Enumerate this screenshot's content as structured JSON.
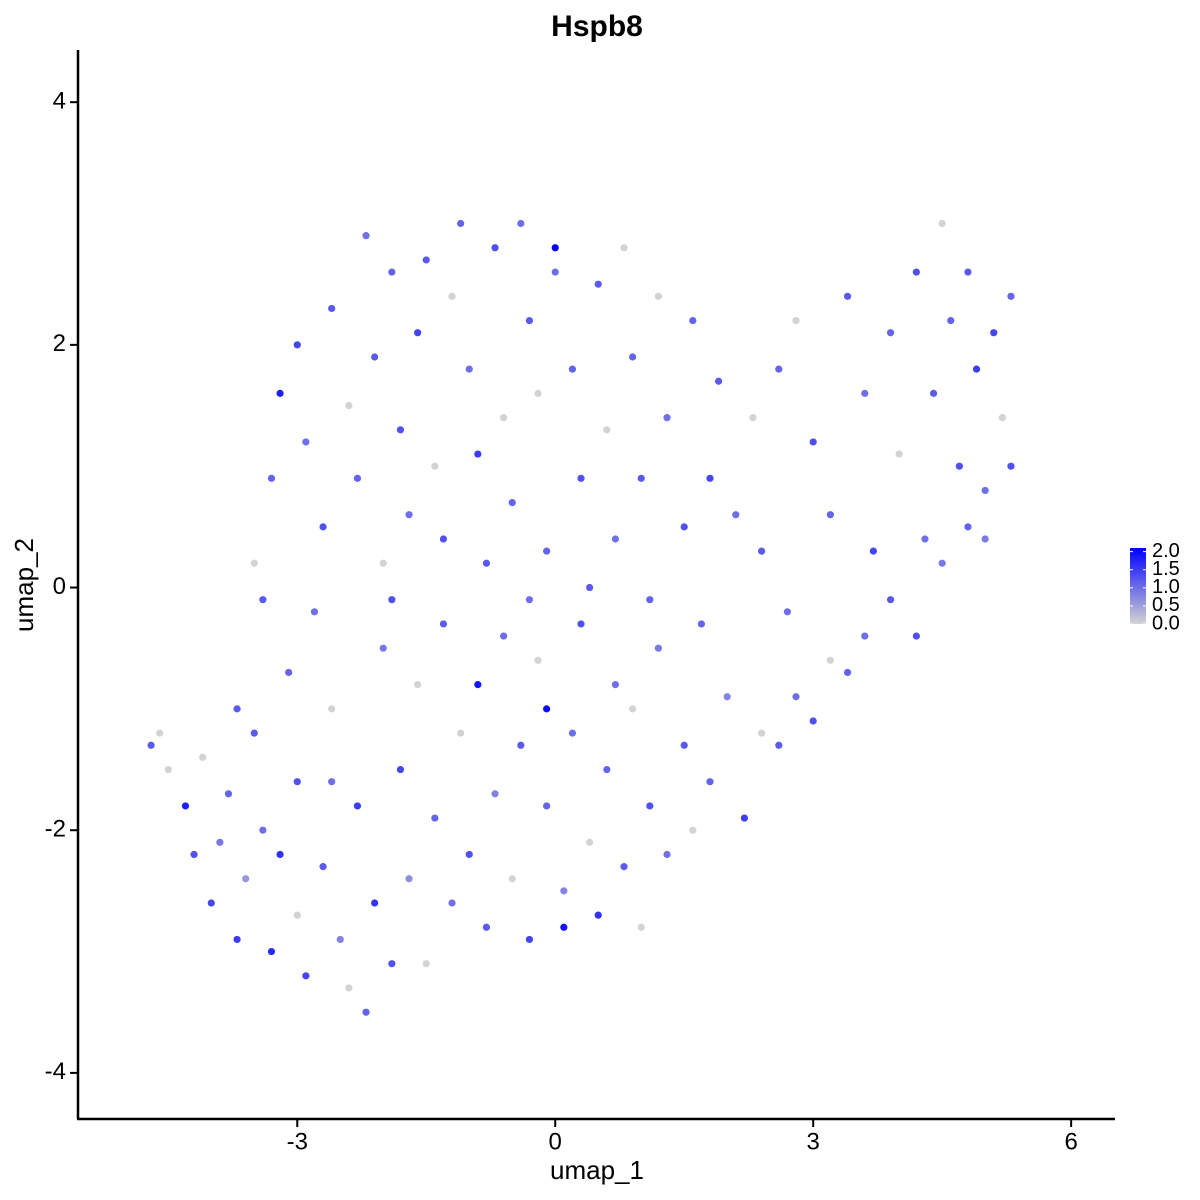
{
  "chart_data": {
    "type": "scatter",
    "title": "Hspb8",
    "x_label": "umap_1",
    "y_label": "umap_2",
    "xlim": [
      -5.55,
      6.51
    ],
    "ylim": [
      -4.38,
      4.43
    ],
    "xticks": [
      -3,
      0,
      3,
      6
    ],
    "yticks": [
      -4,
      -2,
      0,
      2,
      4
    ],
    "color_low": "#d3d3d3",
    "color_high": "#0000ff",
    "clim": [
      0,
      2.1
    ],
    "cticks": [
      {
        "value": 0,
        "label": "0.0"
      },
      0.5,
      {
        "value": 1,
        "label": "1.0"
      },
      1.5,
      {
        "value": 2,
        "label": "2.0"
      }
    ],
    "series": [
      {
        "x": [
          -4.7,
          -4.6,
          -4.5,
          -4.3,
          -4.2,
          -4.0,
          -4.1,
          -3.9,
          -3.8,
          -3.7,
          -3.6,
          -3.5,
          -3.4,
          -3.3,
          -3.2,
          -3.1,
          -3.0,
          -3.0,
          -2.9,
          -2.8,
          -2.7,
          -2.6,
          -2.5,
          -2.4,
          -2.3,
          -2.2,
          -2.1,
          -2.0,
          -1.9,
          -1.8,
          -1.7,
          -1.6,
          -1.5,
          -1.4,
          -1.3,
          -1.2,
          -1.1,
          -1.0,
          -0.9,
          -0.8,
          -0.7,
          -0.6,
          -0.5,
          -0.4,
          -0.3,
          -0.2,
          -0.1,
          -0.1,
          0.1,
          0.1,
          0.2,
          0.3,
          0.4,
          0.5,
          0.6,
          0.7,
          0.8,
          0.9,
          1.0,
          1.1,
          1.2,
          1.3,
          1.5,
          1.6,
          1.8,
          2.0,
          2.2,
          2.4,
          2.6,
          2.8,
          3.0,
          3.2,
          3.4,
          3.6,
          3.9,
          4.2,
          4.5,
          4.8,
          5.0,
          5.3,
          -3.4,
          -3.5,
          -3.3,
          -3.2,
          -3.0,
          -2.9,
          -2.7,
          -2.6,
          -2.4,
          -2.3,
          -2.2,
          -2.1,
          -2.0,
          -1.9,
          -1.8,
          -1.7,
          -1.6,
          -1.5,
          -1.4,
          -1.3,
          -1.2,
          -1.1,
          -1.0,
          -0.9,
          -0.8,
          -0.7,
          -0.6,
          -0.5,
          -0.4,
          -0.3,
          -0.2,
          -0.1,
          0,
          0,
          0.2,
          0.3,
          0.5,
          0.6,
          0.7,
          0.8,
          0.9,
          1.0,
          1.2,
          1.3,
          1.5,
          1.6,
          1.8,
          1.9,
          2.1,
          2.3,
          2.4,
          2.6,
          2.8,
          3.0,
          3.2,
          3.4,
          3.6,
          3.7,
          3.9,
          4.0,
          4.2,
          4.3,
          4.4,
          4.5,
          4.6,
          4.7,
          4.8,
          4.9,
          5.0,
          5.1,
          5.2,
          5.3,
          -0.3,
          0.4,
          1.1,
          -1.9,
          -2.6,
          -3.7,
          1.7,
          2.7
        ],
        "y": [
          -1.3,
          -1.2,
          -1.5,
          -1.8,
          -2.2,
          -2.6,
          -1.4,
          -2.1,
          -1.7,
          -2.9,
          -2.4,
          -1.2,
          -2.0,
          -3.0,
          -2.2,
          -0.7,
          -2.7,
          -1.6,
          -3.2,
          -0.2,
          -2.3,
          -1.0,
          -2.9,
          -3.3,
          -1.8,
          -3.5,
          -2.6,
          -0.5,
          -3.1,
          -1.5,
          -2.4,
          -0.8,
          -3.1,
          -1.9,
          -0.3,
          -2.6,
          -1.2,
          -2.2,
          -0.8,
          -2.8,
          -1.7,
          -0.4,
          -2.4,
          -1.3,
          -2.9,
          -0.6,
          -1.8,
          -1.0,
          -2.5,
          -2.8,
          -1.2,
          -0.3,
          -2.1,
          -2.7,
          -1.5,
          -0.8,
          -2.3,
          -1.0,
          -2.8,
          -1.8,
          -0.5,
          -2.2,
          -1.3,
          -2.0,
          -1.6,
          -0.9,
          -1.9,
          -1.2,
          -1.3,
          -0.9,
          -1.1,
          -0.6,
          -0.7,
          -0.4,
          -0.1,
          -0.4,
          0.2,
          0.5,
          0.8,
          1.0,
          -0.1,
          0.2,
          0.9,
          1.6,
          2.0,
          1.2,
          0.5,
          2.3,
          1.5,
          0.9,
          2.9,
          1.9,
          0.2,
          2.6,
          1.3,
          0.6,
          2.1,
          2.7,
          1.0,
          0.4,
          2.4,
          3.0,
          1.8,
          1.1,
          0.2,
          2.8,
          1.4,
          0.7,
          3.0,
          2.2,
          1.6,
          0.3,
          2.6,
          2.8,
          1.8,
          0.9,
          2.5,
          1.3,
          0.4,
          2.8,
          1.9,
          0.9,
          2.4,
          1.4,
          0.5,
          2.2,
          0.9,
          1.7,
          0.6,
          1.4,
          0.3,
          1.8,
          2.2,
          1.2,
          0.6,
          2.4,
          1.6,
          0.3,
          2.1,
          1.1,
          2.6,
          0.4,
          1.6,
          3.0,
          2.2,
          1.0,
          2.6,
          1.8,
          0.4,
          2.1,
          1.4,
          2.4,
          -0.1,
          0,
          -0.1,
          -0.1,
          -1.6,
          -1.0,
          -0.3,
          -0.2
        ],
        "values": [
          1.2,
          0,
          0,
          1.8,
          1.3,
          1.4,
          0,
          0.9,
          1.1,
          1.5,
          0.6,
          1.2,
          1.0,
          1.7,
          1.6,
          1.1,
          0,
          1.3,
          1.4,
          1.0,
          1.2,
          0,
          0.8,
          0,
          1.5,
          1.1,
          1.6,
          0.9,
          1.3,
          1.4,
          0.7,
          0,
          0,
          1.1,
          1.2,
          1.0,
          0,
          1.3,
          1.9,
          1.2,
          0.8,
          1.0,
          0,
          1.2,
          1.4,
          0,
          1.1,
          2.0,
          0.8,
          1.9,
          1.0,
          1.3,
          0,
          1.6,
          1.1,
          1.0,
          1.2,
          0,
          0,
          1.3,
          0.9,
          1.0,
          1.2,
          0,
          1.1,
          0.8,
          1.5,
          0,
          1.2,
          1.0,
          1.3,
          0,
          1.1,
          1.0,
          1.2,
          1.3,
          0.9,
          1.1,
          1.0,
          1.3,
          1.2,
          0,
          1.1,
          1.8,
          1.4,
          1.0,
          1.3,
          1.2,
          0,
          1.1,
          1.0,
          1.2,
          0,
          1.1,
          1.3,
          1.0,
          1.4,
          1.2,
          0,
          1.3,
          0,
          1.1,
          1.0,
          1.5,
          1.2,
          1.3,
          0,
          1.1,
          1.0,
          1.2,
          0,
          1.1,
          1.0,
          2.1,
          1.1,
          1.3,
          1.2,
          0,
          1.0,
          0,
          1.1,
          1.2,
          0,
          1.0,
          1.3,
          1.1,
          1.4,
          1.2,
          1.0,
          0,
          1.2,
          1.1,
          0,
          1.3,
          1.1,
          1.2,
          1.0,
          1.4,
          1.1,
          0,
          1.3,
          1.0,
          1.2,
          0,
          1.1,
          1.3,
          1.2,
          1.5,
          0.9,
          1.4,
          0,
          1.1,
          1.0,
          1.2,
          1.1,
          1.3,
          1.0,
          1.2,
          1.1,
          1.0
        ]
      }
    ]
  }
}
